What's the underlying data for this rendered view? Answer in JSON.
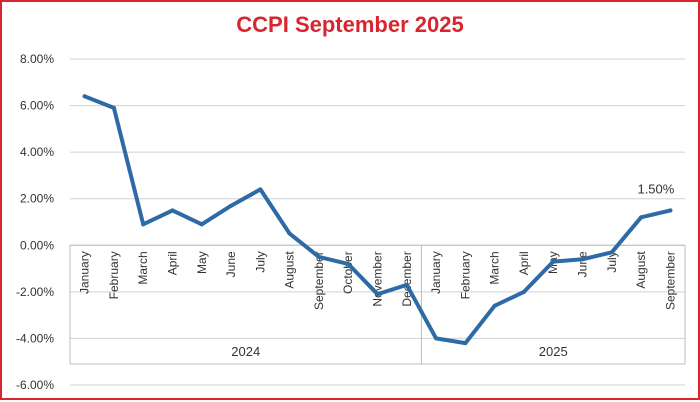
{
  "colors": {
    "title": "#d7262e",
    "line": "#2e6aa6",
    "grid": "#d0d0d0",
    "border": "#d7262e"
  },
  "chart_data": {
    "type": "line",
    "title": "CCPI September 2025",
    "xlabel": "",
    "ylabel": "",
    "ylim": [
      -6,
      8
    ],
    "yticks": [
      8,
      6,
      4,
      2,
      0,
      -2,
      -4,
      -6
    ],
    "yticks_labels": [
      "8.00%",
      "6.00%",
      "4.00%",
      "2.00%",
      "0.00%",
      "-2.00%",
      "-4.00%",
      "-6.00%"
    ],
    "grid": true,
    "legend": "none",
    "categories": [
      "January",
      "February",
      "March",
      "April",
      "May",
      "June",
      "July",
      "August",
      "September",
      "October",
      "November",
      "December",
      "January",
      "February",
      "March",
      "April",
      "May",
      "June",
      "July",
      "August",
      "September"
    ],
    "groups": [
      {
        "label": "2024",
        "start": 0,
        "count": 12
      },
      {
        "label": "2025",
        "start": 12,
        "count": 9
      }
    ],
    "series": [
      {
        "values": [
          6.4,
          5.9,
          0.9,
          1.5,
          0.9,
          1.7,
          2.4,
          0.5,
          -0.5,
          -0.8,
          -2.1,
          -1.7,
          -4.0,
          -4.2,
          -2.6,
          -2.0,
          -0.7,
          -0.6,
          -0.3,
          1.2,
          1.5
        ]
      }
    ],
    "annotations": [
      {
        "index": 20,
        "text": "1.50%"
      }
    ]
  }
}
